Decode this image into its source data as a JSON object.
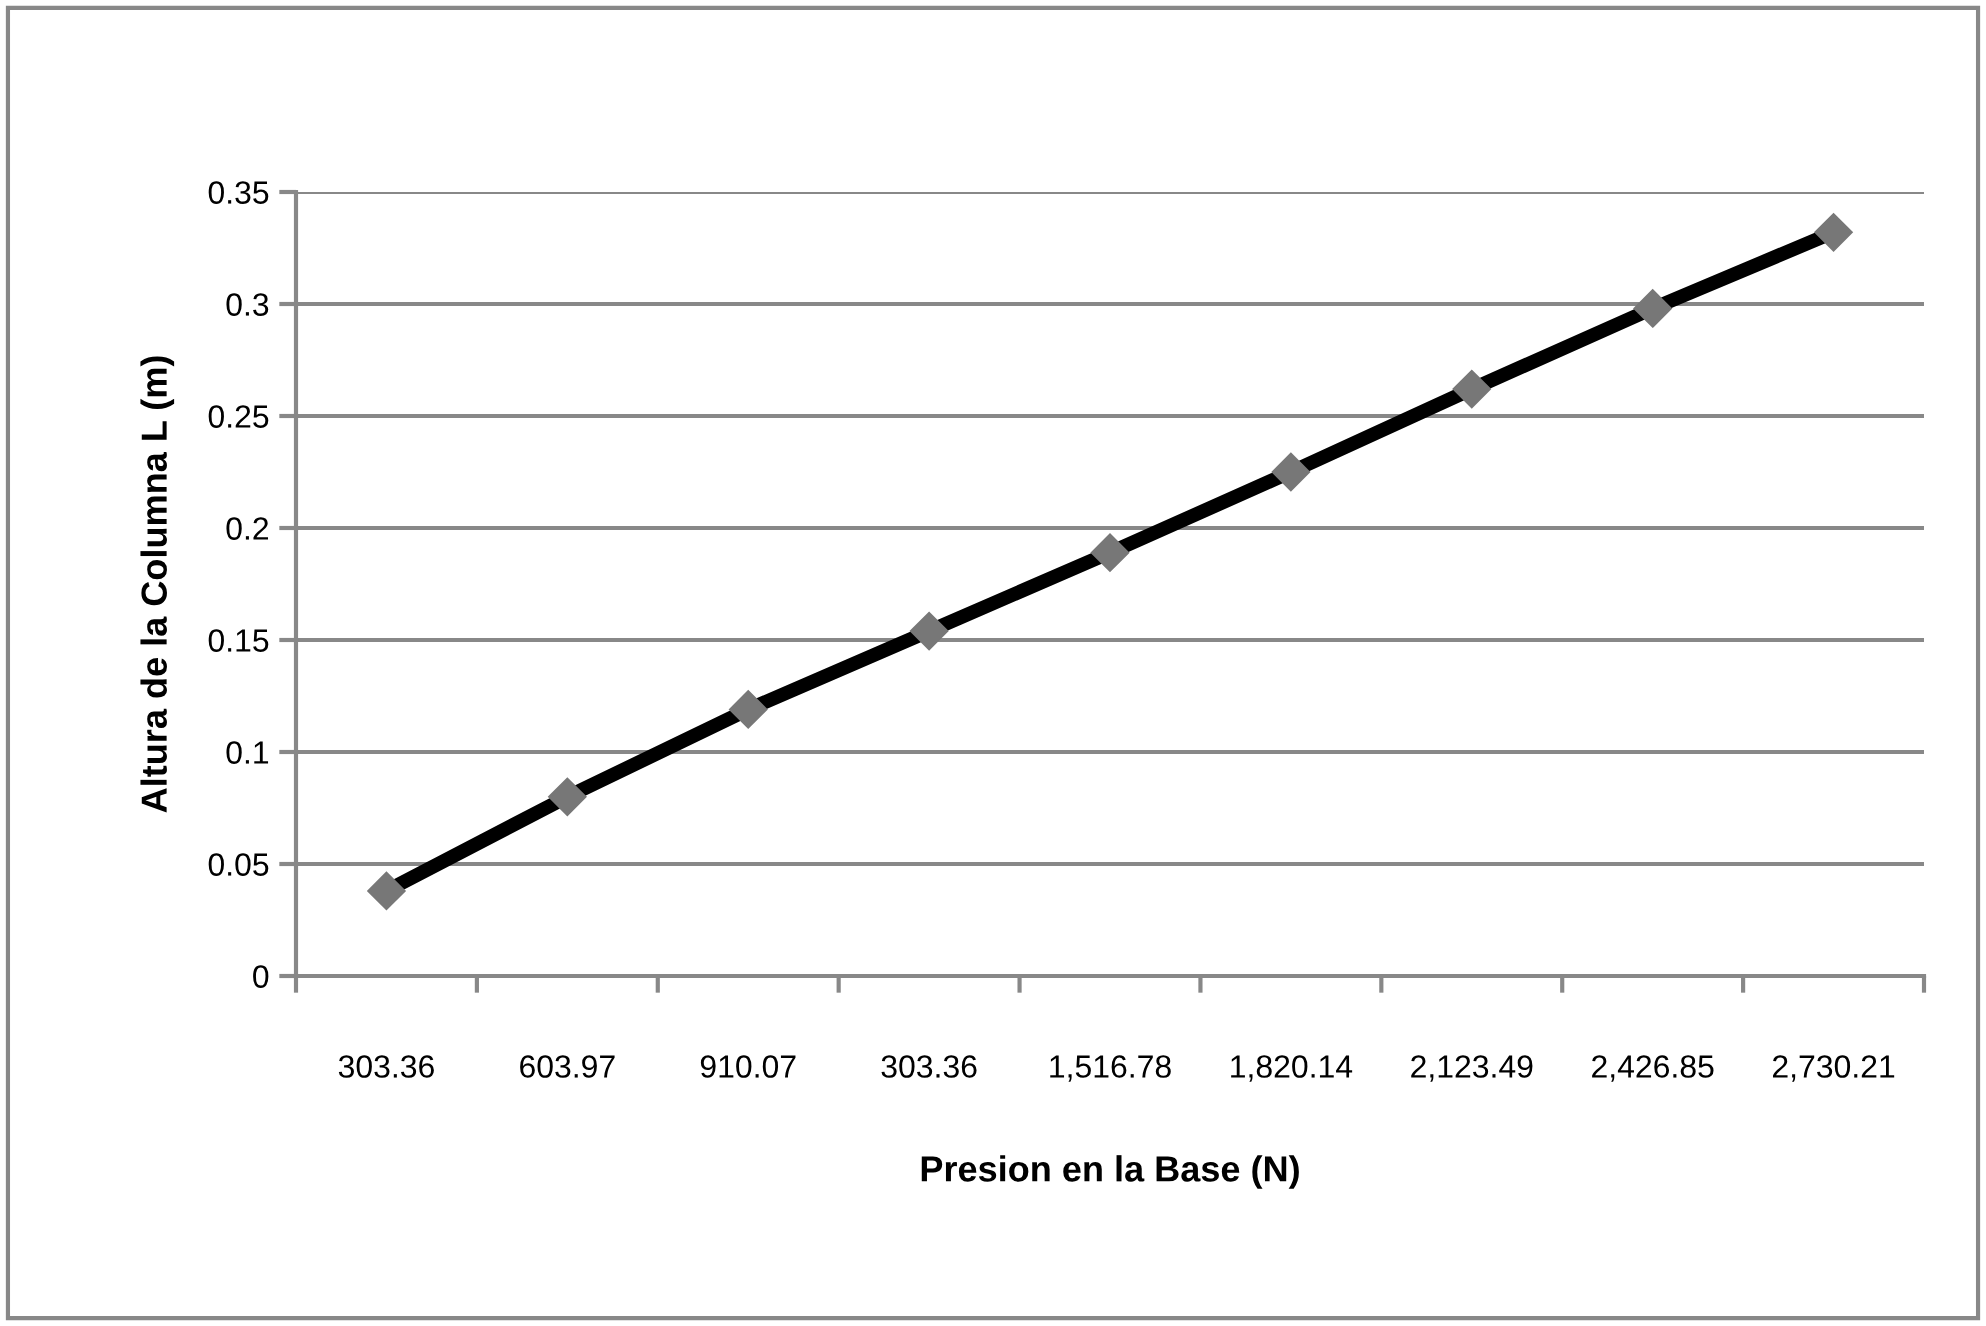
{
  "chart_data": {
    "type": "line",
    "xlabel": "Presion en la Base (N)",
    "ylabel": "Altura de la Columna L (m)",
    "categories": [
      "303.36",
      "603.97",
      "910.07",
      "303.36",
      "1,516.78",
      "1,820.14",
      "2,123.49",
      "2,426.85",
      "2,730.21"
    ],
    "series": [
      {
        "color": "#000000",
        "values": [
          0.038,
          0.08,
          0.119,
          0.154,
          0.189,
          0.225,
          0.262,
          0.298,
          0.332
        ]
      }
    ],
    "marker": "diamond",
    "line_style": "solid",
    "ylim": [
      0,
      0.35
    ],
    "yticks": [
      {
        "value": 0,
        "label": "0"
      },
      0.05,
      0.1,
      0.15,
      0.2,
      0.25,
      0.3,
      0.35
    ],
    "grid": "y",
    "legend": false
  }
}
